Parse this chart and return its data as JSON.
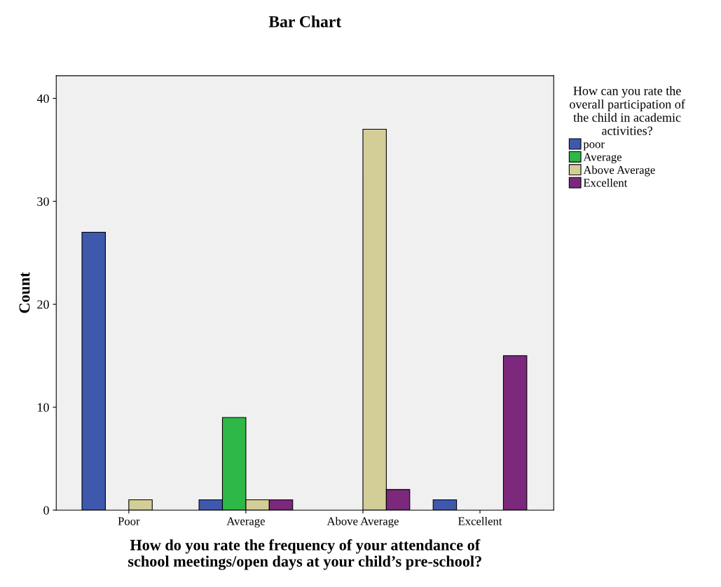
{
  "chart_data": {
    "type": "bar",
    "title": "Bar Chart",
    "xlabel": "How do you rate the frequency of your attendance of\nschool meetings/open days at your child’s pre-school?",
    "ylabel": "Count",
    "legend_title": "How can you rate the\noverall participation of\nthe child in academic\nactivities?",
    "categories": [
      "Poor",
      "Average",
      "Above Average",
      "Excellent"
    ],
    "series": [
      {
        "name": "poor",
        "color": "#3e58ac",
        "values": [
          27,
          1,
          0,
          1
        ]
      },
      {
        "name": "Average",
        "color": "#2eb848",
        "values": [
          0,
          9,
          0,
          0
        ]
      },
      {
        "name": "Above Average",
        "color": "#d3ce97",
        "values": [
          1,
          1,
          37,
          0
        ]
      },
      {
        "name": "Excellent",
        "color": "#7b287d",
        "values": [
          0,
          1,
          2,
          15
        ]
      }
    ],
    "ylim": [
      0,
      42.2
    ],
    "yticks": [
      0,
      10,
      20,
      30,
      40
    ],
    "grid": false,
    "legend": "top right"
  }
}
